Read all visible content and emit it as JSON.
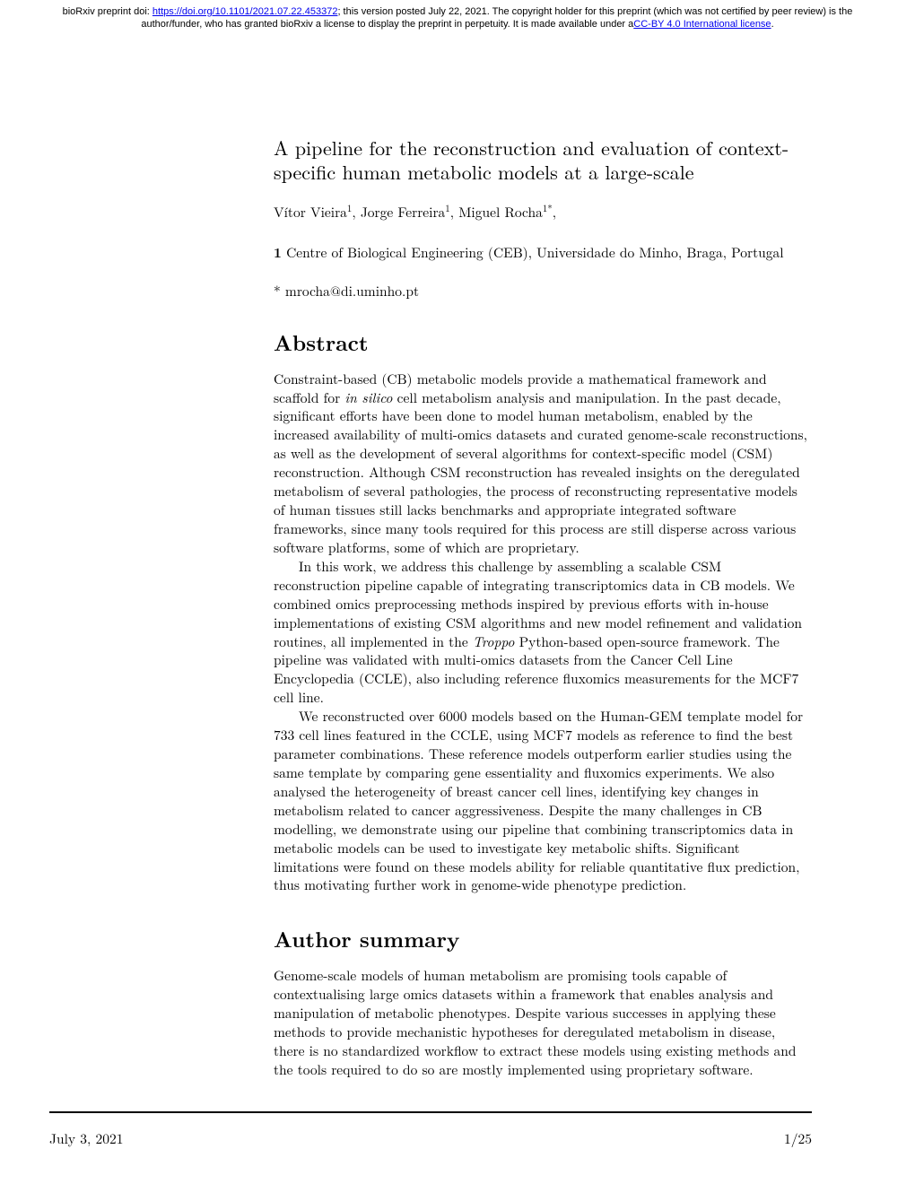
{
  "banner": {
    "prefix": "bioRxiv preprint doi: ",
    "doi_url": "https://doi.org/10.1101/2021.07.22.453372",
    "middle": "; this version posted July 22, 2021. The copyright holder for this preprint (which was not certified by peer review) is the author/funder, who has granted bioRxiv a license to display the preprint in perpetuity. It is made available under a",
    "license_text": "CC-BY 4.0 International license",
    "suffix": "."
  },
  "title": "A pipeline for the reconstruction and evaluation of context-specific human metabolic models at a large-scale",
  "authors": {
    "a1_name": "Vítor Vieira",
    "a1_sup": "1",
    "sep1": ", ",
    "a2_name": "Jorge Ferreira",
    "a2_sup": "1",
    "sep2": ", ",
    "a3_name": "Miguel Rocha",
    "a3_sup": "1*",
    "tail": ","
  },
  "affiliation": {
    "num": "1",
    "text": " Centre of Biological Engineering (CEB), Universidade do Minho, Braga, Portugal"
  },
  "email": "* mrocha@di.uminho.pt",
  "abstract": {
    "heading": "Abstract",
    "p1_a": "Constraint-based (CB) metabolic models provide a mathematical framework and scaffold for ",
    "p1_em": "in silico",
    "p1_b": " cell metabolism analysis and manipulation. In the past decade, significant efforts have been done to model human metabolism, enabled by the increased availability of multi-omics datasets and curated genome-scale reconstructions, as well as the development of several algorithms for context-specific model (CSM) reconstruction. Although CSM reconstruction has revealed insights on the deregulated metabolism of several pathologies, the process of reconstructing representative models of human tissues still lacks benchmarks and appropriate integrated software frameworks, since many tools required for this process are still disperse across various software platforms, some of which are proprietary.",
    "p2_a": "In this work, we address this challenge by assembling a scalable CSM reconstruction pipeline capable of integrating transcriptomics data in CB models. We combined omics preprocessing methods inspired by previous efforts with in-house implementations of existing CSM algorithms and new model refinement and validation routines, all implemented in the ",
    "p2_em": "Troppo",
    "p2_b": " Python-based open-source framework. The pipeline was validated with multi-omics datasets from the Cancer Cell Line Encyclopedia (CCLE), also including reference fluxomics measurements for the MCF7 cell line.",
    "p3": "We reconstructed over 6000 models based on the Human-GEM template model for 733 cell lines featured in the CCLE, using MCF7 models as reference to find the best parameter combinations. These reference models outperform earlier studies using the same template by comparing gene essentiality and fluxomics experiments. We also analysed the heterogeneity of breast cancer cell lines, identifying key changes in metabolism related to cancer aggressiveness. Despite the many challenges in CB modelling, we demonstrate using our pipeline that combining transcriptomics data in metabolic models can be used to investigate key metabolic shifts. Significant limitations were found on these models ability for reliable quantitative flux prediction, thus motivating further work in genome-wide phenotype prediction."
  },
  "summary": {
    "heading": "Author summary",
    "p1": "Genome-scale models of human metabolism are promising tools capable of contextualising large omics datasets within a framework that enables analysis and manipulation of metabolic phenotypes. Despite various successes in applying these methods to provide mechanistic hypotheses for deregulated metabolism in disease, there is no standardized workflow to extract these models using existing methods and the tools required to do so are mostly implemented using proprietary software."
  },
  "footer": {
    "date": "July 3, 2021",
    "page": "1/25"
  }
}
